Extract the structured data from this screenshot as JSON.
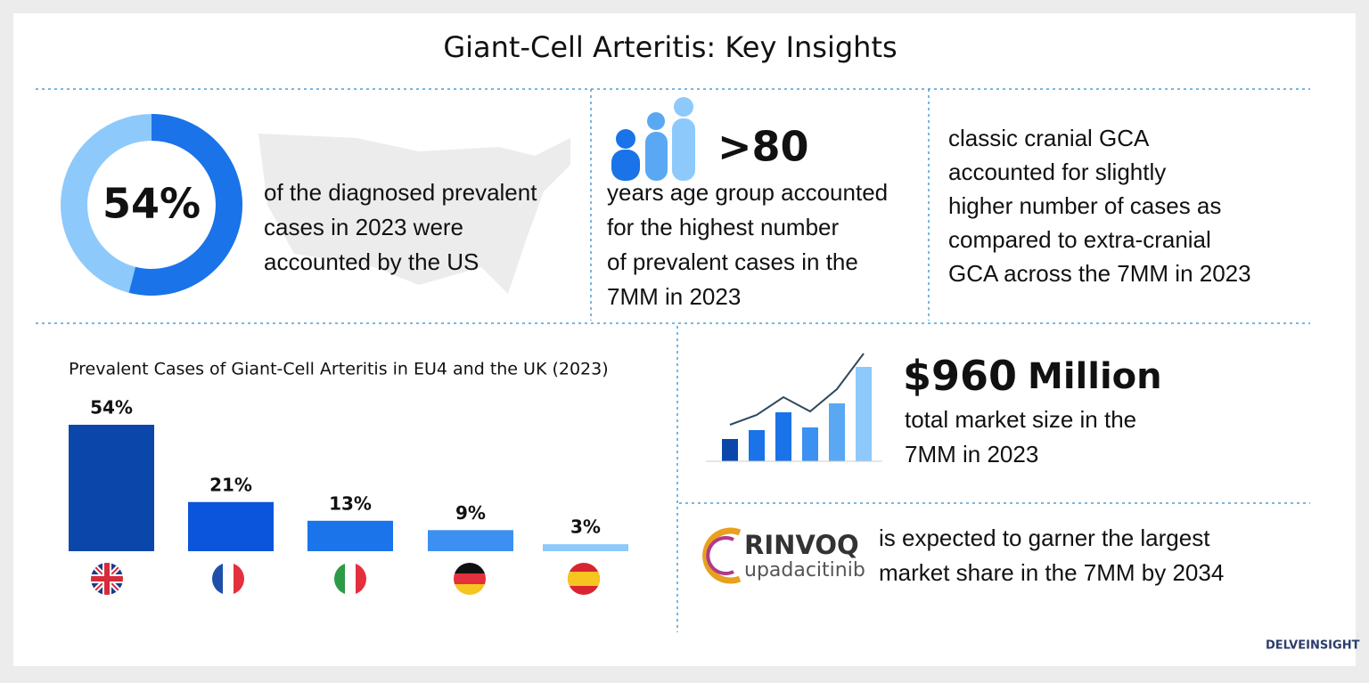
{
  "header": {
    "title": "Giant-Cell Arteritis: Key Insights"
  },
  "us_share": {
    "value": 54,
    "label": "54%",
    "lines": [
      "of the diagnosed prevalent",
      "cases in 2023 were",
      "accounted by the US"
    ]
  },
  "age_group": {
    "headline": ">80",
    "lines": [
      "years age group accounted",
      "for the highest number",
      "of prevalent cases in the",
      "7MM in 2023"
    ]
  },
  "cranial": {
    "lines": [
      "classic cranial GCA",
      "accounted for slightly",
      "higher number of cases as",
      "compared to extra-cranial",
      "GCA across the 7MM in 2023"
    ]
  },
  "bar_chart": {
    "title": "Prevalent Cases of Giant-Cell Arteritis in EU4 and the UK (2023)",
    "values": [
      54,
      21,
      13,
      9,
      3
    ],
    "value_labels": [
      "54%",
      "21%",
      "13%",
      "9%",
      "3%"
    ],
    "colors": [
      "#0b47ab",
      "#0a55db",
      "#1b74ea",
      "#3b90f2",
      "#8ec9fb"
    ]
  },
  "market": {
    "amount": "$960",
    "unit": "Million",
    "lines": [
      "total market size in the",
      "7MM in 2023"
    ]
  },
  "rinvoq": {
    "brand": "RINVOQ",
    "generic": "upadacitinib",
    "lines": [
      "is expected to garner the largest",
      "market share in the 7MM by 2034"
    ]
  },
  "logo": {
    "text": "DELVEINSIGHT"
  }
}
